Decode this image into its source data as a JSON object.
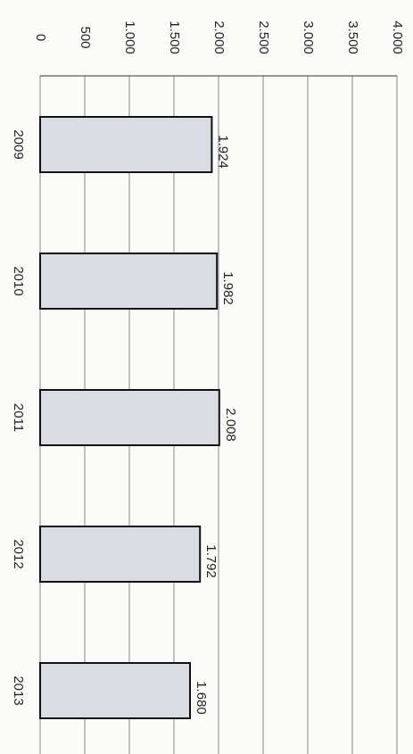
{
  "chart_data": {
    "type": "bar",
    "orientation": "horizontal",
    "categories": [
      "2009",
      "2010",
      "2011",
      "2012",
      "2013"
    ],
    "values": [
      1924,
      1982,
      2008,
      1792,
      1680
    ],
    "value_labels": [
      "1.924",
      "1.982",
      "2.008",
      "1.792",
      "1.680"
    ],
    "color": "#d9dce3",
    "ylim": [
      0,
      4000
    ],
    "yticks": [
      0,
      500,
      {
        "value": 1000,
        "label": "1.000"
      },
      {
        "value": 1500,
        "label": "1.500"
      },
      {
        "value": 2000,
        "label": "2.000"
      },
      {
        "value": 2500,
        "label": "2.500"
      },
      {
        "value": 3000,
        "label": "3.000"
      },
      {
        "value": 3500,
        "label": "3.500"
      },
      {
        "value": 4000,
        "label": "4.000"
      }
    ],
    "grid": true
  }
}
